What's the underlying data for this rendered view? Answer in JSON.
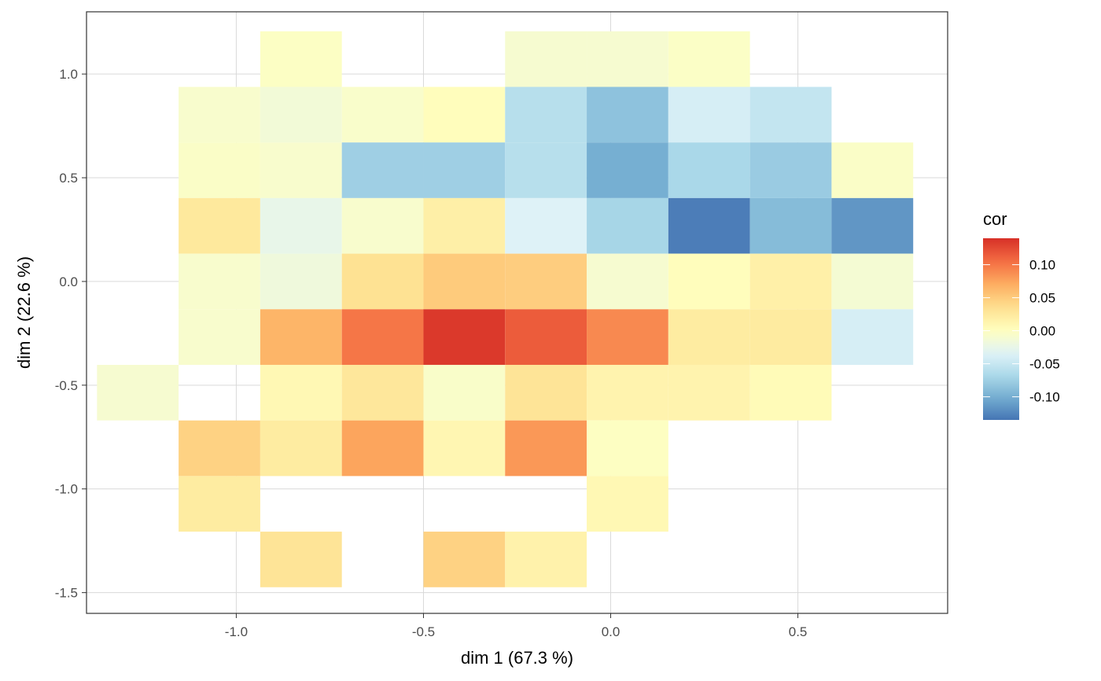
{
  "chart_data": {
    "type": "heatmap",
    "xlabel": "dim 1 (67.3 %)",
    "ylabel": "dim 2 (22.6 %)",
    "xlim": [
      -1.4,
      0.9
    ],
    "ylim": [
      -1.6,
      1.3
    ],
    "x_ticks": [
      "-1.0",
      "-0.5",
      "0.0",
      "0.5"
    ],
    "x_tick_values": [
      -1.0,
      -0.5,
      0.0,
      0.5
    ],
    "y_ticks": [
      "1.0",
      "0.5",
      "0.0",
      "-0.5",
      "-1.0",
      "-1.5"
    ],
    "y_tick_values": [
      1.0,
      0.5,
      0.0,
      -0.5,
      -1.0,
      -1.5
    ],
    "grid": true,
    "legend": {
      "title": "cor",
      "position": "right",
      "labels": [
        "0.10",
        "0.05",
        "0.00",
        "-0.05",
        "-0.10"
      ],
      "values": [
        0.1,
        0.05,
        0.0,
        -0.05,
        -0.1
      ],
      "range": [
        -0.135,
        0.14
      ]
    },
    "x_centers": [
      -1.263,
      -1.045,
      -0.827,
      -0.609,
      -0.391,
      -0.173,
      0.045,
      0.263,
      0.481,
      0.699
    ],
    "y_centers": [
      1.072,
      0.804,
      0.536,
      0.268,
      0.0,
      -0.268,
      -0.536,
      -0.804,
      -1.072,
      -1.34
    ],
    "bin_width": 0.218,
    "bin_height": 0.268,
    "cells": [
      {
        "x": -0.827,
        "y": 1.072,
        "value": -0.003
      },
      {
        "x": -0.173,
        "y": 1.072,
        "value": -0.01
      },
      {
        "x": 0.045,
        "y": 1.072,
        "value": -0.01
      },
      {
        "x": 0.263,
        "y": 1.072,
        "value": -0.004
      },
      {
        "x": -1.045,
        "y": 0.804,
        "value": -0.008
      },
      {
        "x": -0.827,
        "y": 0.804,
        "value": -0.014
      },
      {
        "x": -0.609,
        "y": 0.804,
        "value": -0.007
      },
      {
        "x": -0.391,
        "y": 0.804,
        "value": 0.002
      },
      {
        "x": -0.173,
        "y": 0.804,
        "value": -0.06
      },
      {
        "x": 0.045,
        "y": 0.804,
        "value": -0.085
      },
      {
        "x": 0.263,
        "y": 0.804,
        "value": -0.04
      },
      {
        "x": 0.481,
        "y": 0.804,
        "value": -0.052
      },
      {
        "x": -1.045,
        "y": 0.536,
        "value": -0.005
      },
      {
        "x": -0.827,
        "y": 0.536,
        "value": -0.008
      },
      {
        "x": -0.609,
        "y": 0.536,
        "value": -0.075
      },
      {
        "x": -0.391,
        "y": 0.536,
        "value": -0.075
      },
      {
        "x": -0.173,
        "y": 0.536,
        "value": -0.06
      },
      {
        "x": 0.045,
        "y": 0.536,
        "value": -0.1
      },
      {
        "x": 0.263,
        "y": 0.536,
        "value": -0.068
      },
      {
        "x": 0.481,
        "y": 0.536,
        "value": -0.078
      },
      {
        "x": 0.699,
        "y": 0.536,
        "value": -0.005
      },
      {
        "x": -1.045,
        "y": 0.268,
        "value": 0.025
      },
      {
        "x": -0.827,
        "y": 0.268,
        "value": -0.025
      },
      {
        "x": -0.609,
        "y": 0.268,
        "value": -0.008
      },
      {
        "x": -0.391,
        "y": 0.268,
        "value": 0.018
      },
      {
        "x": -0.173,
        "y": 0.268,
        "value": -0.035
      },
      {
        "x": 0.045,
        "y": 0.268,
        "value": -0.07
      },
      {
        "x": 0.263,
        "y": 0.268,
        "value": -0.13
      },
      {
        "x": 0.481,
        "y": 0.268,
        "value": -0.09
      },
      {
        "x": 0.699,
        "y": 0.268,
        "value": -0.115
      },
      {
        "x": -1.045,
        "y": 0.0,
        "value": -0.008
      },
      {
        "x": -0.827,
        "y": 0.0,
        "value": -0.017
      },
      {
        "x": -0.609,
        "y": 0.0,
        "value": 0.033
      },
      {
        "x": -0.391,
        "y": 0.0,
        "value": 0.05
      },
      {
        "x": -0.173,
        "y": 0.0,
        "value": 0.048
      },
      {
        "x": 0.045,
        "y": 0.0,
        "value": -0.01
      },
      {
        "x": 0.263,
        "y": 0.0,
        "value": 0.002
      },
      {
        "x": 0.481,
        "y": 0.0,
        "value": 0.017
      },
      {
        "x": 0.699,
        "y": 0.0,
        "value": -0.012
      },
      {
        "x": -1.045,
        "y": -0.268,
        "value": -0.008
      },
      {
        "x": -0.827,
        "y": -0.268,
        "value": 0.065
      },
      {
        "x": -0.609,
        "y": -0.268,
        "value": 0.1
      },
      {
        "x": -0.391,
        "y": -0.268,
        "value": 0.135
      },
      {
        "x": -0.173,
        "y": -0.268,
        "value": 0.115
      },
      {
        "x": 0.045,
        "y": -0.268,
        "value": 0.09
      },
      {
        "x": 0.263,
        "y": -0.268,
        "value": 0.022
      },
      {
        "x": 0.481,
        "y": -0.268,
        "value": 0.023
      },
      {
        "x": 0.699,
        "y": -0.268,
        "value": -0.04
      },
      {
        "x": -1.263,
        "y": -0.536,
        "value": -0.01
      },
      {
        "x": -0.827,
        "y": -0.536,
        "value": 0.008
      },
      {
        "x": -0.609,
        "y": -0.536,
        "value": 0.027
      },
      {
        "x": -0.391,
        "y": -0.536,
        "value": -0.006
      },
      {
        "x": -0.173,
        "y": -0.536,
        "value": 0.03
      },
      {
        "x": 0.045,
        "y": -0.536,
        "value": 0.013
      },
      {
        "x": 0.263,
        "y": -0.536,
        "value": 0.013
      },
      {
        "x": 0.481,
        "y": -0.536,
        "value": 0.005
      },
      {
        "x": -1.045,
        "y": -0.804,
        "value": 0.045
      },
      {
        "x": -0.827,
        "y": -0.804,
        "value": 0.022
      },
      {
        "x": -0.609,
        "y": -0.804,
        "value": 0.075
      },
      {
        "x": -0.391,
        "y": -0.804,
        "value": 0.01
      },
      {
        "x": -0.173,
        "y": -0.804,
        "value": 0.082
      },
      {
        "x": 0.045,
        "y": -0.804,
        "value": -0.002
      },
      {
        "x": -1.045,
        "y": -1.072,
        "value": 0.022
      },
      {
        "x": 0.045,
        "y": -1.072,
        "value": 0.008
      },
      {
        "x": -0.827,
        "y": -1.34,
        "value": 0.03
      },
      {
        "x": -0.391,
        "y": -1.34,
        "value": 0.045
      },
      {
        "x": -0.173,
        "y": -1.34,
        "value": 0.015
      }
    ],
    "colors": {
      "palette": [
        "#4575b4",
        "#74add1",
        "#abd9e9",
        "#e0f3f8",
        "#ffffbf",
        "#fee090",
        "#fdae61",
        "#f46d43",
        "#d73027"
      ],
      "panel_border": "#333333",
      "grid": "#d9d9d9",
      "tick": "#333333"
    }
  }
}
